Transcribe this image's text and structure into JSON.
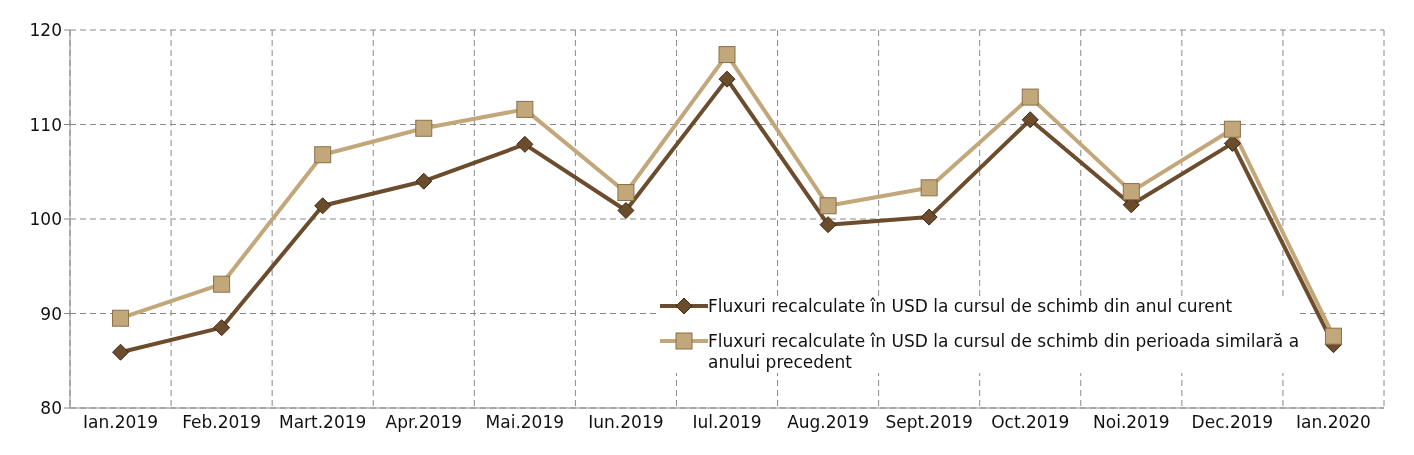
{
  "chart_data": {
    "type": "line",
    "categories": [
      "Ian.2019",
      "Feb.2019",
      "Mart.2019",
      "Apr.2019",
      "Mai.2019",
      "Iun.2019",
      "Iul.2019",
      "Aug.2019",
      "Sept.2019",
      "Oct.2019",
      "Noi.2019",
      "Dec.2019",
      "Ian.2020"
    ],
    "series": [
      {
        "name": "Fluxuri recalculate în USD la cursul de schimb din anul curent",
        "color": "#6b4c2c",
        "marker": "diamond",
        "values": [
          85.9,
          88.5,
          101.4,
          104.0,
          107.9,
          100.9,
          114.8,
          99.4,
          100.2,
          110.5,
          101.5,
          108.0,
          86.7
        ]
      },
      {
        "name": "Fluxuri recalculate în USD la cursul de schimb din perioada similară a anului precedent",
        "color": "#c2a77a",
        "marker": "square",
        "values": [
          89.5,
          93.1,
          106.8,
          109.6,
          111.6,
          102.8,
          117.4,
          101.4,
          103.3,
          112.9,
          102.9,
          109.5,
          87.6
        ]
      }
    ],
    "ylim": [
      80,
      120
    ],
    "yticks": [
      80,
      90,
      100,
      110,
      120
    ],
    "grid": true,
    "legend": "bottom right",
    "line_style": "solid"
  }
}
